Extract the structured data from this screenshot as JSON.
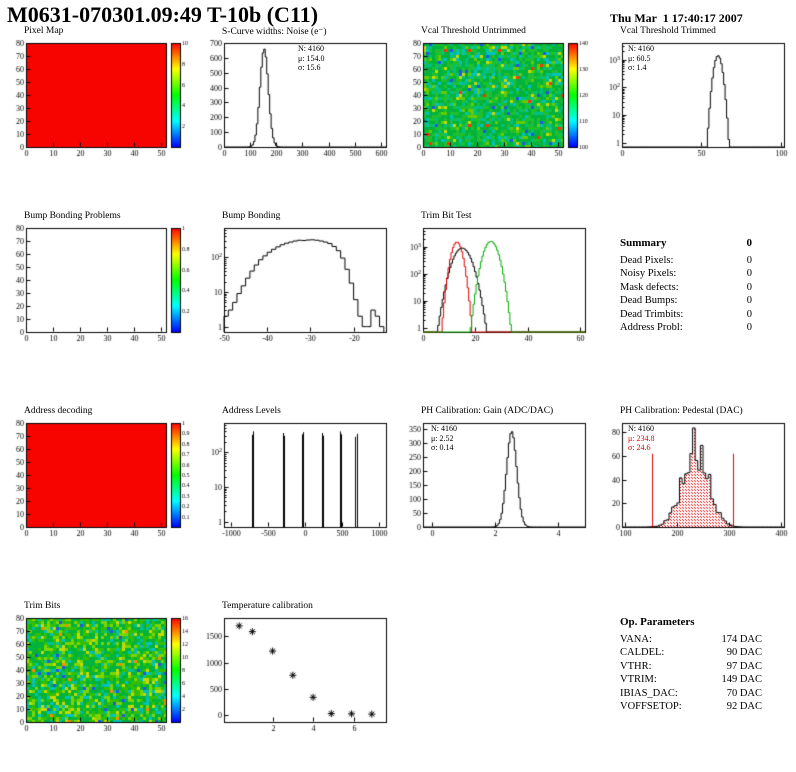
{
  "header": {
    "title": "M0631-070301.09:49 T-10b (C11)",
    "timestamp": "Thu Mar  1 17:40:17 2007"
  },
  "summary": {
    "title": "Summary",
    "total": "0",
    "items": [
      {
        "label": "Dead Pixels:",
        "value": "0"
      },
      {
        "label": "Noisy Pixels:",
        "value": "0"
      },
      {
        "label": "Mask defects:",
        "value": "0"
      },
      {
        "label": "Dead Bumps:",
        "value": "0"
      },
      {
        "label": "Dead Trimbits:",
        "value": "0"
      },
      {
        "label": "Address Probl:",
        "value": "0"
      }
    ]
  },
  "op_parameters": {
    "title": "Op. Parameters",
    "items": [
      {
        "label": "VANA:",
        "value": "174 DAC"
      },
      {
        "label": "CALDEL:",
        "value": "90 DAC"
      },
      {
        "label": "VTHR:",
        "value": "97 DAC"
      },
      {
        "label": "VTRIM:",
        "value": "149 DAC"
      },
      {
        "label": "IBIAS_DAC:",
        "value": "70 DAC"
      },
      {
        "label": "VOFFSETOP:",
        "value": "92 DAC"
      }
    ]
  },
  "chart_data": [
    {
      "type": "heatmap",
      "title": "Pixel Map",
      "fill": "uniform",
      "color": "#f80400",
      "xlim": [
        0,
        52
      ],
      "ylim": [
        0,
        80
      ],
      "xticks": [
        0,
        10,
        20,
        30,
        40,
        50
      ],
      "yticks": [
        0,
        10,
        20,
        30,
        40,
        50,
        60,
        70,
        80
      ],
      "colorbar": {
        "min": 0,
        "max": 10,
        "labels": [
          2,
          4,
          6,
          8,
          10
        ]
      }
    },
    {
      "type": "histogram",
      "title": "S-Curve widths: Noise (e⁻)",
      "stats_lines": [
        "N: 4160",
        "μ: 154.0",
        "σ: 15.6"
      ],
      "xlim": [
        0,
        620
      ],
      "ylim": [
        0,
        700
      ],
      "xticks": [
        0,
        100,
        200,
        300,
        400,
        500,
        600
      ],
      "yticks": [
        0,
        100,
        200,
        300,
        400,
        500,
        600,
        700
      ],
      "curve": {
        "kind": "gauss",
        "mean": 154,
        "sigma": 16,
        "peak": 660,
        "color": "#000000"
      }
    },
    {
      "type": "heatmap",
      "title": "Vcal Threshold Untrimmed",
      "fill": "noise",
      "seed": 7,
      "palette": [
        [
          "#00b33c",
          40
        ],
        [
          "#1fbf2f",
          25
        ],
        [
          "#00bf86",
          12
        ],
        [
          "#00c2c2",
          8
        ],
        [
          "#66cc00",
          8
        ],
        [
          "#c8d900",
          4
        ],
        [
          "#2255ee",
          2
        ],
        [
          "#ff3300",
          1
        ]
      ],
      "xlim": [
        0,
        52
      ],
      "ylim": [
        0,
        80
      ],
      "xticks": [
        0,
        10,
        20,
        30,
        40,
        50
      ],
      "yticks": [
        0,
        10,
        20,
        30,
        40,
        50,
        60,
        70,
        80
      ],
      "colorbar": {
        "min": 100,
        "max": 140,
        "labels": [
          100,
          110,
          120,
          130,
          140
        ]
      }
    },
    {
      "type": "histogram",
      "title": "Vcal Threshold Trimmed",
      "logy": true,
      "stats_lines": [
        "N: 4160",
        "μ: 60.5",
        "σ: 1.4"
      ],
      "xlim": [
        0,
        102
      ],
      "ylim": [
        0.7,
        4000
      ],
      "xticks": [
        0,
        50,
        100
      ],
      "curve": {
        "kind": "gauss",
        "mean": 60.5,
        "sigma": 1.8,
        "peak": 1400,
        "color": "#000000"
      }
    },
    {
      "type": "heatmap",
      "title": "Bump Bonding Problems",
      "fill": "empty",
      "xlim": [
        0,
        52
      ],
      "ylim": [
        0,
        80
      ],
      "xticks": [
        0,
        10,
        20,
        30,
        40,
        50
      ],
      "yticks": [
        0,
        10,
        20,
        30,
        40,
        50,
        60,
        70,
        80
      ],
      "colorbar": {
        "min": 0,
        "max": 1,
        "labels": [
          0.2,
          0.4,
          0.6,
          0.8,
          1
        ]
      }
    },
    {
      "type": "histogram",
      "title": "Bump Bonding",
      "logy": true,
      "xlim": [
        -50,
        -12.5
      ],
      "ylim": [
        0.7,
        700
      ],
      "xticks": [
        -50,
        -40,
        -30,
        -20
      ],
      "bins": {
        "x0": -50,
        "dx": 1,
        "values": [
          2,
          3,
          5,
          9,
          15,
          25,
          40,
          60,
          85,
          110,
          140,
          170,
          200,
          230,
          255,
          275,
          295,
          310,
          305,
          315,
          320,
          310,
          295,
          275,
          250,
          205,
          155,
          95,
          45,
          18,
          6,
          2,
          1,
          1,
          3,
          2,
          1
        ]
      }
    },
    {
      "type": "histogram",
      "title": "Trim Bit Test",
      "logy": true,
      "xlim": [
        0,
        62
      ],
      "ylim": [
        0.7,
        5000
      ],
      "xticks": [
        0,
        20,
        40,
        60
      ],
      "series": [
        {
          "kind": "gauss",
          "mean": 15,
          "sigma": 2.5,
          "peak": 900,
          "color": "#000000"
        },
        {
          "kind": "gauss",
          "mean": 13,
          "sigma": 1.5,
          "peak": 1500,
          "color": "#dd0000"
        },
        {
          "kind": "gauss",
          "mean": 26,
          "sigma": 2.0,
          "peak": 1600,
          "color": "#00aa00"
        }
      ]
    },
    {
      "type": "heatmap",
      "title": "Address decoding",
      "fill": "uniform",
      "color": "#f80400",
      "xlim": [
        0,
        52
      ],
      "ylim": [
        0,
        80
      ],
      "xticks": [
        0,
        10,
        20,
        30,
        40,
        50
      ],
      "yticks": [
        0,
        10,
        20,
        30,
        40,
        50,
        60,
        70,
        80
      ],
      "colorbar": {
        "min": 0,
        "max": 1,
        "labels": [
          0.1,
          0.2,
          0.3,
          0.4,
          0.5,
          0.6,
          0.7,
          0.8,
          0.9,
          1
        ]
      }
    },
    {
      "type": "spikes",
      "title": "Address Levels",
      "logy": true,
      "xlim": [
        -1100,
        1100
      ],
      "ylim": [
        0.7,
        700
      ],
      "xticks": [
        -1000,
        -500,
        0,
        500,
        1000
      ],
      "spikes": [
        [
          -720,
          320
        ],
        [
          -700,
          400
        ],
        [
          -300,
          360
        ],
        [
          -285,
          300
        ],
        [
          -45,
          330
        ],
        [
          -25,
          380
        ],
        [
          225,
          360
        ],
        [
          245,
          300
        ],
        [
          475,
          400
        ],
        [
          495,
          330
        ],
        [
          685,
          280
        ],
        [
          705,
          340
        ]
      ]
    },
    {
      "type": "histogram",
      "title": "PH Calibration: Gain (ADC/DAC)",
      "stats_lines": [
        "N: 4160",
        "μ: 2.52",
        "σ: 0.14"
      ],
      "xlim": [
        -0.3,
        4.85
      ],
      "ylim": [
        0,
        370
      ],
      "xticks": [
        0,
        2,
        4
      ],
      "yticks": [
        0,
        50,
        100,
        150,
        200,
        250,
        300,
        350
      ],
      "curve": {
        "kind": "gauss",
        "mean": 2.52,
        "sigma": 0.16,
        "peak": 340,
        "color": "#000000"
      }
    },
    {
      "type": "histogram",
      "title": "PH Calibration: Pedestal (DAC)",
      "seed": 5,
      "stats_lines": [
        "N: 4160",
        "μ: 234.8",
        "σ: 24.6"
      ],
      "accent": "#e60000",
      "xlim": [
        95,
        405
      ],
      "ylim": [
        0,
        88
      ],
      "xticks": [
        100,
        200,
        300,
        400
      ],
      "yticks": [
        0,
        20,
        40,
        60,
        80
      ],
      "curve": {
        "kind": "gauss",
        "mean": 234.8,
        "sigma": 24.6,
        "peak": 66,
        "jitter": true,
        "nbins": 62,
        "fill": "#e60000",
        "color": "#000000"
      },
      "vlines": [
        [
          152,
          62
        ],
        [
          308,
          62
        ]
      ]
    },
    {
      "type": "heatmap",
      "title": "Trim Bits",
      "fill": "noise",
      "seed": 11,
      "palette": [
        [
          "#00b33c",
          35
        ],
        [
          "#33bf00",
          25
        ],
        [
          "#7fd400",
          15
        ],
        [
          "#00bf9f",
          10
        ],
        [
          "#00c2c2",
          6
        ],
        [
          "#c8d900",
          6
        ],
        [
          "#2255ee",
          2
        ],
        [
          "#ff8800",
          1
        ]
      ],
      "xlim": [
        0,
        52
      ],
      "ylim": [
        0,
        80
      ],
      "xticks": [
        0,
        10,
        20,
        30,
        40,
        50
      ],
      "yticks": [
        0,
        10,
        20,
        30,
        40,
        50,
        60,
        70,
        80
      ],
      "colorbar": {
        "min": 0,
        "max": 16,
        "labels": [
          2,
          4,
          6,
          8,
          10,
          12,
          14,
          16
        ]
      }
    },
    {
      "type": "scatter",
      "title": "Temperature calibration",
      "marker": "asterisk",
      "xlim": [
        -0.4,
        7.6
      ],
      "ylim": [
        -130,
        1850
      ],
      "xticks": [
        2,
        4,
        6
      ],
      "yticks": [
        0,
        500,
        1000,
        1500
      ],
      "points": [
        [
          0.35,
          1700
        ],
        [
          1.0,
          1590
        ],
        [
          2.0,
          1220
        ],
        [
          3.0,
          760
        ],
        [
          4.0,
          340
        ],
        [
          4.9,
          30
        ],
        [
          5.9,
          25
        ],
        [
          6.9,
          20
        ]
      ]
    }
  ]
}
